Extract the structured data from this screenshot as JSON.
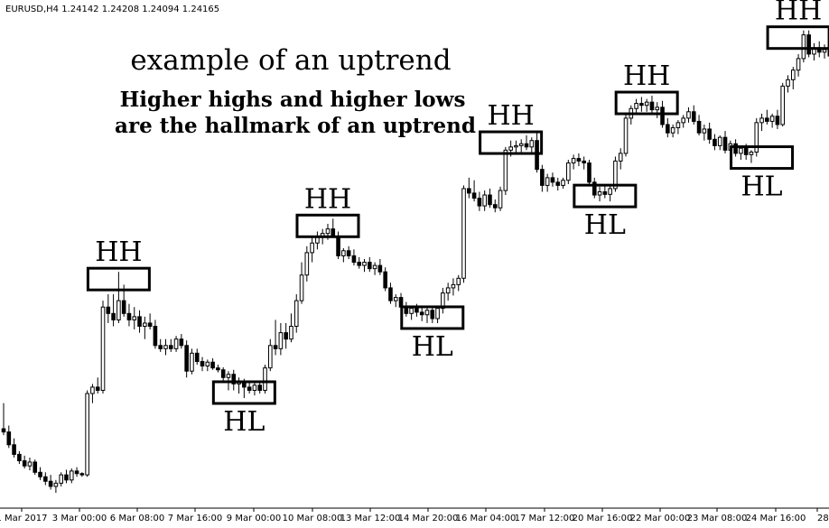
{
  "header": {
    "symbol_text": "EURUSD,H4  1.24142 1.24208 1.24094 1.24165"
  },
  "annotations": {
    "title": "example of an uptrend",
    "subtitle_line1": "Higher highs and higher lows",
    "subtitle_line2": "are the hallmark of an uptrend"
  },
  "chart_data": {
    "type": "candlestick",
    "symbol": "EURUSD",
    "timeframe": "H4",
    "title": "example of an uptrend",
    "subtitle": "Higher highs and higher lows are the hallmark of an uptrend",
    "x_tick_labels": [
      "1 Mar 2017",
      "3 Mar 00:00",
      "6 Mar 08:00",
      "7 Mar 16:00",
      "9 Mar 00:00",
      "10 Mar 08:00",
      "13 Mar 12:00",
      "14 Mar 20:00",
      "16 Mar 04:00",
      "17 Mar 12:00",
      "20 Mar 16:00",
      "22 Mar 00:00",
      "23 Mar 08:00",
      "24 Mar 16:00",
      "28 M"
    ],
    "swing_labels": [
      {
        "label": "HH",
        "candle": 22
      },
      {
        "label": "HL",
        "candle": 46
      },
      {
        "label": "HH",
        "candle": 62
      },
      {
        "label": "HL",
        "candle": 82
      },
      {
        "label": "HH",
        "candle": 97
      },
      {
        "label": "HL",
        "candle": 115
      },
      {
        "label": "HH",
        "candle": 123
      },
      {
        "label": "HL",
        "candle": 145
      },
      {
        "label": "HH",
        "candle": 152
      }
    ],
    "candles": [
      {
        "o": 1.05,
        "h": 1.054,
        "l": 1.049,
        "c": 1.0495
      },
      {
        "o": 1.0495,
        "h": 1.0505,
        "l": 1.047,
        "c": 1.0475
      },
      {
        "o": 1.0475,
        "h": 1.0485,
        "l": 1.0455,
        "c": 1.046
      },
      {
        "o": 1.046,
        "h": 1.0465,
        "l": 1.0445,
        "c": 1.045
      },
      {
        "o": 1.045,
        "h": 1.0458,
        "l": 1.0438,
        "c": 1.0442
      },
      {
        "o": 1.0442,
        "h": 1.0455,
        "l": 1.0435,
        "c": 1.0448
      },
      {
        "o": 1.0448,
        "h": 1.0452,
        "l": 1.0428,
        "c": 1.0432
      },
      {
        "o": 1.0432,
        "h": 1.044,
        "l": 1.042,
        "c": 1.0425
      },
      {
        "o": 1.0425,
        "h": 1.0432,
        "l": 1.0412,
        "c": 1.0418
      },
      {
        "o": 1.0418,
        "h": 1.0428,
        "l": 1.0405,
        "c": 1.041
      },
      {
        "o": 1.041,
        "h": 1.042,
        "l": 1.04,
        "c": 1.0415
      },
      {
        "o": 1.0415,
        "h": 1.0432,
        "l": 1.041,
        "c": 1.0428
      },
      {
        "o": 1.0428,
        "h": 1.0436,
        "l": 1.0415,
        "c": 1.042
      },
      {
        "o": 1.042,
        "h": 1.0438,
        "l": 1.0415,
        "c": 1.0434
      },
      {
        "o": 1.0434,
        "h": 1.044,
        "l": 1.0425,
        "c": 1.043
      },
      {
        "o": 1.043,
        "h": 1.0432,
        "l": 1.0425,
        "c": 1.0428
      },
      {
        "o": 1.0428,
        "h": 1.056,
        "l": 1.0425,
        "c": 1.0555
      },
      {
        "o": 1.0555,
        "h": 1.057,
        "l": 1.054,
        "c": 1.0565
      },
      {
        "o": 1.0565,
        "h": 1.058,
        "l": 1.0555,
        "c": 1.056
      },
      {
        "o": 1.056,
        "h": 1.07,
        "l": 1.0555,
        "c": 1.069
      },
      {
        "o": 1.069,
        "h": 1.071,
        "l": 1.0665,
        "c": 1.068
      },
      {
        "o": 1.068,
        "h": 1.071,
        "l": 1.066,
        "c": 1.067
      },
      {
        "o": 1.067,
        "h": 1.0745,
        "l": 1.0665,
        "c": 1.07
      },
      {
        "o": 1.07,
        "h": 1.0725,
        "l": 1.0675,
        "c": 1.068
      },
      {
        "o": 1.068,
        "h": 1.0695,
        "l": 1.066,
        "c": 1.067
      },
      {
        "o": 1.067,
        "h": 1.069,
        "l": 1.0655,
        "c": 1.0675
      },
      {
        "o": 1.0675,
        "h": 1.0685,
        "l": 1.065,
        "c": 1.066
      },
      {
        "o": 1.066,
        "h": 1.0675,
        "l": 1.064,
        "c": 1.0665
      },
      {
        "o": 1.0665,
        "h": 1.068,
        "l": 1.0655,
        "c": 1.066
      },
      {
        "o": 1.066,
        "h": 1.067,
        "l": 1.0625,
        "c": 1.063
      },
      {
        "o": 1.063,
        "h": 1.064,
        "l": 1.062,
        "c": 1.0625
      },
      {
        "o": 1.0625,
        "h": 1.064,
        "l": 1.0615,
        "c": 1.063
      },
      {
        "o": 1.063,
        "h": 1.064,
        "l": 1.062,
        "c": 1.0625
      },
      {
        "o": 1.0625,
        "h": 1.0645,
        "l": 1.062,
        "c": 1.064
      },
      {
        "o": 1.064,
        "h": 1.0648,
        "l": 1.0625,
        "c": 1.063
      },
      {
        "o": 1.063,
        "h": 1.0638,
        "l": 1.058,
        "c": 1.059
      },
      {
        "o": 1.059,
        "h": 1.0625,
        "l": 1.0585,
        "c": 1.0618
      },
      {
        "o": 1.0618,
        "h": 1.0625,
        "l": 1.06,
        "c": 1.0605
      },
      {
        "o": 1.0605,
        "h": 1.0612,
        "l": 1.059,
        "c": 1.0598
      },
      {
        "o": 1.0598,
        "h": 1.0608,
        "l": 1.059,
        "c": 1.0604
      },
      {
        "o": 1.0604,
        "h": 1.061,
        "l": 1.0592,
        "c": 1.0595
      },
      {
        "o": 1.0595,
        "h": 1.06,
        "l": 1.0588,
        "c": 1.0592
      },
      {
        "o": 1.0592,
        "h": 1.0596,
        "l": 1.0575,
        "c": 1.058
      },
      {
        "o": 1.058,
        "h": 1.059,
        "l": 1.056,
        "c": 1.0585
      },
      {
        "o": 1.0585,
        "h": 1.0592,
        "l": 1.056,
        "c": 1.057
      },
      {
        "o": 1.057,
        "h": 1.058,
        "l": 1.0555,
        "c": 1.0572
      },
      {
        "o": 1.0572,
        "h": 1.0578,
        "l": 1.0548,
        "c": 1.0565
      },
      {
        "o": 1.0565,
        "h": 1.0575,
        "l": 1.0555,
        "c": 1.056
      },
      {
        "o": 1.056,
        "h": 1.0572,
        "l": 1.0552,
        "c": 1.0568
      },
      {
        "o": 1.0568,
        "h": 1.0575,
        "l": 1.0555,
        "c": 1.056
      },
      {
        "o": 1.056,
        "h": 1.06,
        "l": 1.0555,
        "c": 1.0595
      },
      {
        "o": 1.0595,
        "h": 1.064,
        "l": 1.059,
        "c": 1.063
      },
      {
        "o": 1.063,
        "h": 1.067,
        "l": 1.0615,
        "c": 1.0625
      },
      {
        "o": 1.0625,
        "h": 1.0665,
        "l": 1.0615,
        "c": 1.065
      },
      {
        "o": 1.065,
        "h": 1.0665,
        "l": 1.0625,
        "c": 1.064
      },
      {
        "o": 1.064,
        "h": 1.068,
        "l": 1.0635,
        "c": 1.066
      },
      {
        "o": 1.066,
        "h": 1.071,
        "l": 1.065,
        "c": 1.07
      },
      {
        "o": 1.07,
        "h": 1.076,
        "l": 1.0695,
        "c": 1.074
      },
      {
        "o": 1.074,
        "h": 1.0785,
        "l": 1.073,
        "c": 1.0775
      },
      {
        "o": 1.0775,
        "h": 1.08,
        "l": 1.076,
        "c": 1.079
      },
      {
        "o": 1.079,
        "h": 1.0808,
        "l": 1.078,
        "c": 1.08
      },
      {
        "o": 1.08,
        "h": 1.0812,
        "l": 1.0788,
        "c": 1.0805
      },
      {
        "o": 1.0805,
        "h": 1.082,
        "l": 1.0795,
        "c": 1.0812
      },
      {
        "o": 1.0812,
        "h": 1.0828,
        "l": 1.0798,
        "c": 1.08
      },
      {
        "o": 1.08,
        "h": 1.0808,
        "l": 1.0765,
        "c": 1.077
      },
      {
        "o": 1.077,
        "h": 1.0782,
        "l": 1.076,
        "c": 1.0778
      },
      {
        "o": 1.0778,
        "h": 1.0785,
        "l": 1.0765,
        "c": 1.077
      },
      {
        "o": 1.077,
        "h": 1.078,
        "l": 1.0755,
        "c": 1.076
      },
      {
        "o": 1.076,
        "h": 1.0768,
        "l": 1.075,
        "c": 1.0755
      },
      {
        "o": 1.0755,
        "h": 1.0765,
        "l": 1.0745,
        "c": 1.076
      },
      {
        "o": 1.076,
        "h": 1.0768,
        "l": 1.0745,
        "c": 1.075
      },
      {
        "o": 1.075,
        "h": 1.076,
        "l": 1.074,
        "c": 1.0755
      },
      {
        "o": 1.0755,
        "h": 1.0765,
        "l": 1.074,
        "c": 1.0745
      },
      {
        "o": 1.0745,
        "h": 1.0752,
        "l": 1.0715,
        "c": 1.072
      },
      {
        "o": 1.072,
        "h": 1.0728,
        "l": 1.0695,
        "c": 1.07
      },
      {
        "o": 1.07,
        "h": 1.071,
        "l": 1.069,
        "c": 1.0705
      },
      {
        "o": 1.0705,
        "h": 1.0712,
        "l": 1.0685,
        "c": 1.069
      },
      {
        "o": 1.069,
        "h": 1.0698,
        "l": 1.0675,
        "c": 1.068
      },
      {
        "o": 1.068,
        "h": 1.0692,
        "l": 1.067,
        "c": 1.0688
      },
      {
        "o": 1.0688,
        "h": 1.0695,
        "l": 1.0675,
        "c": 1.0682
      },
      {
        "o": 1.0682,
        "h": 1.069,
        "l": 1.0668,
        "c": 1.0678
      },
      {
        "o": 1.0678,
        "h": 1.069,
        "l": 1.0665,
        "c": 1.0685
      },
      {
        "o": 1.0685,
        "h": 1.0692,
        "l": 1.0665,
        "c": 1.0672
      },
      {
        "o": 1.0672,
        "h": 1.069,
        "l": 1.0665,
        "c": 1.0688
      },
      {
        "o": 1.0688,
        "h": 1.072,
        "l": 1.068,
        "c": 1.0712
      },
      {
        "o": 1.0712,
        "h": 1.0728,
        "l": 1.07,
        "c": 1.072
      },
      {
        "o": 1.072,
        "h": 1.0735,
        "l": 1.0708,
        "c": 1.0725
      },
      {
        "o": 1.0725,
        "h": 1.074,
        "l": 1.0715,
        "c": 1.0735
      },
      {
        "o": 1.0735,
        "h": 1.088,
        "l": 1.0728,
        "c": 1.0875
      },
      {
        "o": 1.0875,
        "h": 1.0892,
        "l": 1.086,
        "c": 1.0868
      },
      {
        "o": 1.0868,
        "h": 1.0888,
        "l": 1.0855,
        "c": 1.086
      },
      {
        "o": 1.086,
        "h": 1.087,
        "l": 1.084,
        "c": 1.0848
      },
      {
        "o": 1.0848,
        "h": 1.0872,
        "l": 1.084,
        "c": 1.0865
      },
      {
        "o": 1.0865,
        "h": 1.0875,
        "l": 1.0845,
        "c": 1.085
      },
      {
        "o": 1.085,
        "h": 1.0858,
        "l": 1.0838,
        "c": 1.0845
      },
      {
        "o": 1.0845,
        "h": 1.0878,
        "l": 1.084,
        "c": 1.0872
      },
      {
        "o": 1.0872,
        "h": 1.094,
        "l": 1.0865,
        "c": 1.0935
      },
      {
        "o": 1.0935,
        "h": 1.095,
        "l": 1.0925,
        "c": 1.094
      },
      {
        "o": 1.094,
        "h": 1.095,
        "l": 1.0928,
        "c": 1.0942
      },
      {
        "o": 1.0942,
        "h": 1.0952,
        "l": 1.093,
        "c": 1.0945
      },
      {
        "o": 1.0945,
        "h": 1.0958,
        "l": 1.0935,
        "c": 1.094
      },
      {
        "o": 1.094,
        "h": 1.0955,
        "l": 1.093,
        "c": 1.095
      },
      {
        "o": 1.095,
        "h": 1.0962,
        "l": 1.09,
        "c": 1.0905
      },
      {
        "o": 1.0905,
        "h": 1.0912,
        "l": 1.087,
        "c": 1.088
      },
      {
        "o": 1.088,
        "h": 1.0898,
        "l": 1.087,
        "c": 1.0892
      },
      {
        "o": 1.0892,
        "h": 1.09,
        "l": 1.0878,
        "c": 1.0885
      },
      {
        "o": 1.0885,
        "h": 1.0892,
        "l": 1.0872,
        "c": 1.088
      },
      {
        "o": 1.088,
        "h": 1.0892,
        "l": 1.0875,
        "c": 1.0888
      },
      {
        "o": 1.0888,
        "h": 1.092,
        "l": 1.0882,
        "c": 1.0915
      },
      {
        "o": 1.0915,
        "h": 1.0928,
        "l": 1.0905,
        "c": 1.0922
      },
      {
        "o": 1.0922,
        "h": 1.093,
        "l": 1.091,
        "c": 1.0918
      },
      {
        "o": 1.0918,
        "h": 1.0925,
        "l": 1.0905,
        "c": 1.0915
      },
      {
        "o": 1.0915,
        "h": 1.092,
        "l": 1.088,
        "c": 1.0885
      },
      {
        "o": 1.0885,
        "h": 1.0892,
        "l": 1.086,
        "c": 1.0865
      },
      {
        "o": 1.0865,
        "h": 1.0878,
        "l": 1.0855,
        "c": 1.087
      },
      {
        "o": 1.087,
        "h": 1.088,
        "l": 1.086,
        "c": 1.0866
      },
      {
        "o": 1.0866,
        "h": 1.088,
        "l": 1.0855,
        "c": 1.0875
      },
      {
        "o": 1.0875,
        "h": 1.0925,
        "l": 1.087,
        "c": 1.0918
      },
      {
        "o": 1.0918,
        "h": 1.0938,
        "l": 1.0905,
        "c": 1.093
      },
      {
        "o": 1.093,
        "h": 1.0992,
        "l": 1.0925,
        "c": 1.0985
      },
      {
        "o": 1.0985,
        "h": 1.1005,
        "l": 1.0975,
        "c": 1.1
      },
      {
        "o": 1.1,
        "h": 1.1015,
        "l": 1.099,
        "c": 1.1008
      },
      {
        "o": 1.1008,
        "h": 1.1018,
        "l": 1.0995,
        "c": 1.1005
      },
      {
        "o": 1.1005,
        "h": 1.1015,
        "l": 1.0995,
        "c": 1.101
      },
      {
        "o": 1.101,
        "h": 1.102,
        "l": 1.0992,
        "c": 1.0998
      },
      {
        "o": 1.0998,
        "h": 1.101,
        "l": 1.0985,
        "c": 1.1002
      },
      {
        "o": 1.1002,
        "h": 1.1012,
        "l": 1.097,
        "c": 1.0975
      },
      {
        "o": 1.0975,
        "h": 1.0985,
        "l": 1.0955,
        "c": 1.0962
      },
      {
        "o": 1.0962,
        "h": 1.0975,
        "l": 1.0955,
        "c": 1.097
      },
      {
        "o": 1.097,
        "h": 1.0982,
        "l": 1.096,
        "c": 1.0978
      },
      {
        "o": 1.0978,
        "h": 1.099,
        "l": 1.097,
        "c": 1.0985
      },
      {
        "o": 1.0985,
        "h": 1.1002,
        "l": 1.0978,
        "c": 1.0995
      },
      {
        "o": 1.0995,
        "h": 1.1005,
        "l": 1.0975,
        "c": 1.098
      },
      {
        "o": 1.098,
        "h": 1.099,
        "l": 1.0958,
        "c": 1.0962
      },
      {
        "o": 1.0962,
        "h": 1.0975,
        "l": 1.095,
        "c": 1.0968
      },
      {
        "o": 1.0968,
        "h": 1.0978,
        "l": 1.0945,
        "c": 1.0952
      },
      {
        "o": 1.0952,
        "h": 1.096,
        "l": 1.0935,
        "c": 1.0942
      },
      {
        "o": 1.0942,
        "h": 1.0958,
        "l": 1.0935,
        "c": 1.0955
      },
      {
        "o": 1.0955,
        "h": 1.0965,
        "l": 1.093,
        "c": 1.0935
      },
      {
        "o": 1.0935,
        "h": 1.095,
        "l": 1.0925,
        "c": 1.0945
      },
      {
        "o": 1.0945,
        "h": 1.0952,
        "l": 1.0925,
        "c": 1.093
      },
      {
        "o": 1.093,
        "h": 1.0942,
        "l": 1.092,
        "c": 1.0938
      },
      {
        "o": 1.0938,
        "h": 1.0945,
        "l": 1.092,
        "c": 1.0928
      },
      {
        "o": 1.0928,
        "h": 1.0935,
        "l": 1.0915,
        "c": 1.0932
      },
      {
        "o": 1.0932,
        "h": 1.0985,
        "l": 1.0925,
        "c": 1.0978
      },
      {
        "o": 1.0978,
        "h": 1.0992,
        "l": 1.0965,
        "c": 1.0985
      },
      {
        "o": 1.0985,
        "h": 1.0998,
        "l": 1.0975,
        "c": 1.098
      },
      {
        "o": 1.098,
        "h": 1.0992,
        "l": 1.097,
        "c": 1.0988
      },
      {
        "o": 1.0988,
        "h": 1.0998,
        "l": 1.0968,
        "c": 1.0975
      },
      {
        "o": 1.0975,
        "h": 1.104,
        "l": 1.0972,
        "c": 1.1035
      },
      {
        "o": 1.1035,
        "h": 1.1052,
        "l": 1.1025,
        "c": 1.1045
      },
      {
        "o": 1.1045,
        "h": 1.1065,
        "l": 1.103,
        "c": 1.106
      },
      {
        "o": 1.106,
        "h": 1.1085,
        "l": 1.105,
        "c": 1.1078
      },
      {
        "o": 1.1078,
        "h": 1.1122,
        "l": 1.1072,
        "c": 1.1115
      },
      {
        "o": 1.1115,
        "h": 1.1122,
        "l": 1.108,
        "c": 1.1085
      },
      {
        "o": 1.1085,
        "h": 1.1102,
        "l": 1.1075,
        "c": 1.1095
      },
      {
        "o": 1.1095,
        "h": 1.1105,
        "l": 1.108,
        "c": 1.1088
      },
      {
        "o": 1.1088,
        "h": 1.11,
        "l": 1.1078,
        "c": 1.1092
      },
      {
        "o": 1.1092,
        "h": 1.1102,
        "l": 1.1075,
        "c": 1.1082
      },
      {
        "o": 1.1082,
        "h": 1.1095,
        "l": 1.1075,
        "c": 1.109
      }
    ]
  }
}
